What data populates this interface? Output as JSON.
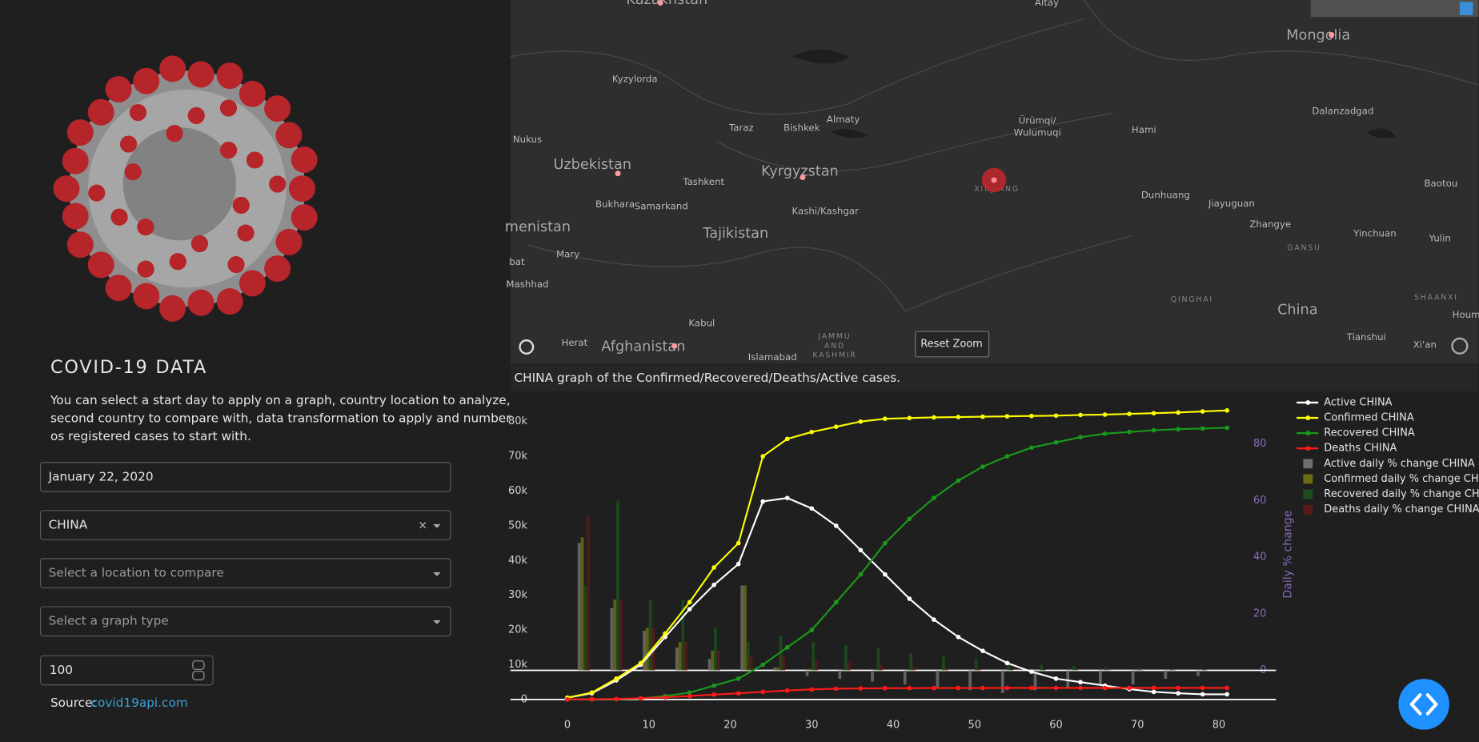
{
  "sidebar": {
    "title": "COVID-19 DATA",
    "description": [
      "You can select a start day to apply on a graph, country location to analyze,",
      "second country to compare with, data transformation to apply and number",
      "os registered cases to start with."
    ],
    "date": "January 22, 2020",
    "country": "CHINA",
    "compare_placeholder": "Select a location to compare",
    "graph_placeholder": "Select a graph type",
    "min_cases": "100",
    "source_label": "Source:",
    "source_link": "covid19api.com"
  },
  "map": {
    "labels": [
      "Kazakhstan",
      "Altay",
      "Mongolia",
      "Kyzylorda",
      "Taraz",
      "Bishkek",
      "Almaty",
      "Ürümqi/",
      "Wulumuqi",
      "Hami",
      "Dalanzadgad",
      "Nukus",
      "Uzbekistan",
      "Tashkent",
      "Kyrgyzstan",
      "XINJIANG",
      "Dunhuang",
      "Jiayuguan",
      "Baotou",
      "Bukhara",
      "Samarkand",
      "Kashi/Kashgar",
      "Tajikistan",
      "menistan",
      "Zhangye",
      "Yinchuan",
      "Yulin",
      "GANSU",
      "bat",
      "Mary",
      "Mashhad",
      "QINGHAI",
      "SHAANXI",
      "China",
      "Kabul",
      "Herat",
      "Afghanistan",
      "JAMMU",
      "AND",
      "KASHMIR",
      "Islamabad",
      "Tianshui",
      "Xi'an",
      "Houm"
    ],
    "reset_zoom": "Reset Zoom"
  },
  "caption": "CHINA graph of the Confirmed/Recovered/Deaths/Active cases.",
  "chart_data": {
    "type": "line",
    "x": [
      0,
      3,
      6,
      9,
      12,
      15,
      18,
      21,
      24,
      27,
      30,
      33,
      36,
      39,
      42,
      45,
      48,
      51,
      54,
      57,
      60,
      63,
      66,
      69,
      72,
      75,
      78,
      81
    ],
    "xlim": [
      -7,
      87
    ],
    "xticks": [
      0,
      10,
      20,
      30,
      40,
      50,
      60,
      70,
      80
    ],
    "ylim": [
      -3000,
      86000
    ],
    "yticks": [
      0,
      {
        "value": 10000,
        "label": "10k"
      },
      {
        "value": 20000,
        "label": "20k"
      },
      {
        "value": 30000,
        "label": "30k"
      },
      {
        "value": 40000,
        "label": "40k"
      },
      {
        "value": 50000,
        "label": "50k"
      },
      {
        "value": 60000,
        "label": "60k"
      },
      {
        "value": 70000,
        "label": "70k"
      },
      {
        "value": 80000,
        "label": "80k"
      }
    ],
    "y2lim": [
      -14,
      95.3
    ],
    "y2ticks": [
      0,
      20,
      40,
      60,
      80
    ],
    "y2_label": "Daily % change",
    "grid": false,
    "zeroline": true,
    "series": [
      {
        "name": "Active CHINA",
        "kind": "line",
        "color": "#ffffff",
        "values": [
          500,
          1800,
          5500,
          10000,
          18000,
          26000,
          33000,
          39000,
          57000,
          58000,
          55000,
          50000,
          43000,
          36000,
          29000,
          23000,
          18000,
          14000,
          10500,
          8000,
          6000,
          5000,
          4000,
          3000,
          2200,
          1800,
          1500,
          1500
        ]
      },
      {
        "name": "Confirmed CHINA",
        "kind": "line",
        "color": "#ffff00",
        "values": [
          555,
          2000,
          6000,
          10500,
          19000,
          28000,
          38000,
          45000,
          70000,
          75000,
          77000,
          78500,
          80000,
          80800,
          81000,
          81200,
          81300,
          81400,
          81500,
          81600,
          81700,
          81900,
          82000,
          82200,
          82400,
          82600,
          82900,
          83200
        ]
      },
      {
        "name": "Recovered CHINA",
        "kind": "line",
        "color": "#1a9a1a",
        "values": [
          0,
          50,
          100,
          300,
          1000,
          2000,
          4000,
          6000,
          10000,
          15000,
          20000,
          28000,
          36000,
          45000,
          52000,
          58000,
          63000,
          67000,
          70000,
          72500,
          74000,
          75500,
          76500,
          77000,
          77500,
          77800,
          78000,
          78200
        ]
      },
      {
        "name": "Deaths CHINA",
        "kind": "line",
        "color": "#ff1a1a",
        "values": [
          17,
          80,
          170,
          360,
          640,
          1000,
          1400,
          1770,
          2200,
          2600,
          2900,
          3100,
          3200,
          3250,
          3280,
          3300,
          3310,
          3320,
          3330,
          3330,
          3330,
          3335,
          3335,
          3340,
          3340,
          3340,
          3340,
          3340
        ]
      },
      {
        "name": "Active daily % change CHINA",
        "kind": "bar",
        "axis": "y2",
        "color": "#6e6e6e",
        "x": [
          2,
          6,
          10,
          14,
          18,
          22,
          26,
          30,
          34,
          38,
          42,
          46,
          50,
          54,
          58,
          62,
          66,
          70,
          74,
          78
        ],
        "values": [
          45,
          22,
          14,
          8,
          4,
          30,
          1,
          -2,
          -3,
          -4,
          -5,
          -6,
          -7,
          -8,
          -7,
          -6,
          -5,
          -5,
          -3,
          -2
        ]
      },
      {
        "name": "Confirmed daily % change CHINA",
        "kind": "bar",
        "axis": "y2",
        "color": "#6b6b12",
        "x": [
          2,
          6,
          10,
          14,
          18,
          22,
          26,
          30,
          34,
          38,
          42,
          46,
          50,
          54,
          58,
          62,
          66,
          70,
          74,
          78
        ],
        "values": [
          47,
          25,
          15,
          10,
          7,
          30,
          1,
          0.5,
          0.3,
          0.2,
          0.2,
          0.1,
          0.1,
          0.1,
          0.1,
          0.1,
          0.1,
          0.1,
          0.1,
          0.1
        ]
      },
      {
        "name": "Recovered daily % change CHINA",
        "kind": "bar",
        "axis": "y2",
        "color": "#1d4d1d",
        "x": [
          2,
          6,
          10,
          14,
          18,
          22,
          26,
          30,
          34,
          38,
          42,
          46,
          50,
          54,
          58,
          62,
          66,
          70,
          74,
          78
        ],
        "values": [
          30,
          60,
          25,
          25,
          15,
          10,
          12,
          10,
          9,
          8,
          6,
          5,
          4,
          3,
          2,
          1.5,
          1,
          0.8,
          0.5,
          0.3
        ]
      },
      {
        "name": "Deaths daily % change CHINA",
        "kind": "bar",
        "axis": "y2",
        "color": "#5a1a1a",
        "x": [
          2,
          6,
          10,
          14,
          18,
          22,
          26,
          30,
          34,
          38,
          42,
          46,
          50,
          54,
          58,
          62,
          66,
          70,
          74,
          78
        ],
        "values": [
          55,
          25,
          15,
          10,
          7,
          5,
          5,
          4,
          3,
          2,
          1,
          0.8,
          0.6,
          0.4,
          0.3,
          0.2,
          0.1,
          0.1,
          0.1,
          0.1
        ]
      }
    ]
  }
}
